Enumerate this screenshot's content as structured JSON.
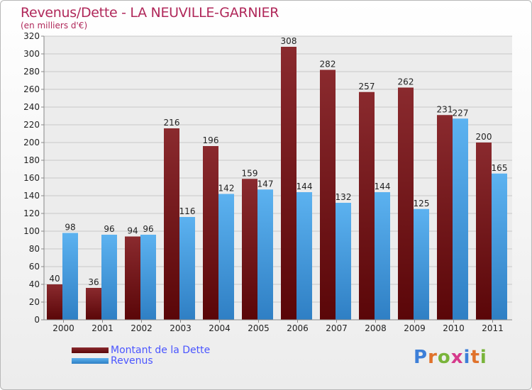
{
  "title": "Revenus/Dette - LA NEUVILLE-GARNIER",
  "subtitle": "(en milliers d'€)",
  "logo": "Proxiti",
  "colors": {
    "dette": "#7a1418",
    "revenus": "#4aa3e6",
    "title": "#b0285a",
    "legend_text": "#4a55ff"
  },
  "chart_data": {
    "type": "bar",
    "title": "Revenus/Dette - LA NEUVILLE-GARNIER",
    "ylabel": "(en milliers d'€)",
    "categories": [
      "2000",
      "2001",
      "2002",
      "2003",
      "2004",
      "2005",
      "2006",
      "2007",
      "2008",
      "2009",
      "2010",
      "2011"
    ],
    "ylim": [
      0,
      320
    ],
    "yticks": [
      0,
      20,
      40,
      60,
      80,
      100,
      120,
      140,
      160,
      180,
      200,
      220,
      240,
      260,
      280,
      300,
      320
    ],
    "grid": true,
    "legend_position": "bottom-left",
    "series": [
      {
        "name": "Montant de la Dette",
        "values": [
          40,
          36,
          94,
          216,
          196,
          159,
          308,
          282,
          257,
          262,
          231,
          200
        ]
      },
      {
        "name": "Revenus",
        "values": [
          98,
          96,
          96,
          116,
          142,
          147,
          144,
          132,
          144,
          125,
          227,
          165
        ]
      }
    ]
  }
}
